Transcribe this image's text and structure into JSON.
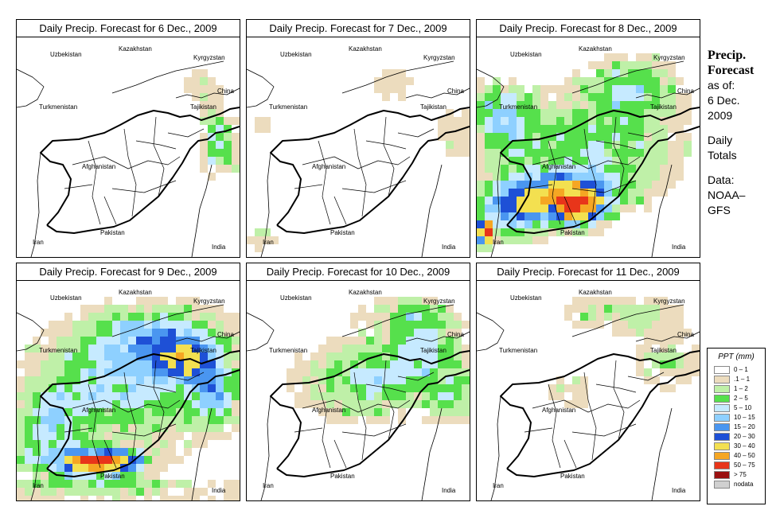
{
  "panels": [
    {
      "title": "Daily Precip. Forecast for  6 Dec., 2009"
    },
    {
      "title": "Daily Precip. Forecast for  7 Dec., 2009"
    },
    {
      "title": "Daily Precip. Forecast for  8 Dec., 2009"
    },
    {
      "title": "Daily Precip. Forecast for  9 Dec., 2009"
    },
    {
      "title": "Daily Precip. Forecast for  10 Dec., 2009"
    },
    {
      "title": "Daily Precip. Forecast for  11 Dec., 2009"
    }
  ],
  "countries": {
    "uzbekistan": "Uzbekistan",
    "kazakhstan": "Kazakhstan",
    "kyrgyzstan": "Kyrgyzstan",
    "china": "China",
    "turkmenistan": "Turkmenistan",
    "tajikistan": "Tajikistan",
    "afghanistan": "Afghanistan",
    "pakistan": "Pakistan",
    "iran": "Iran",
    "india": "India"
  },
  "sidebar": {
    "title1": "Precip.",
    "title2": "Forecast",
    "asof": "as of:",
    "date1": "6 Dec.",
    "date2": "2009",
    "daily1": "Daily",
    "daily2": "Totals",
    "data1": "Data:",
    "data2": "NOAA–",
    "data3": "GFS"
  },
  "legend": {
    "title": "PPT (mm)",
    "items": [
      {
        "label": "0 – 1",
        "color": "#ffffff"
      },
      {
        "label": ".1 – 1",
        "color": "#ecdcbe"
      },
      {
        "label": "1 – 2",
        "color": "#bff0a8"
      },
      {
        "label": "2 – 5",
        "color": "#56e04c"
      },
      {
        "label": "5 – 10",
        "color": "#c6eaff"
      },
      {
        "label": "10 – 15",
        "color": "#8ed0ff"
      },
      {
        "label": "15 – 20",
        "color": "#4a96f0"
      },
      {
        "label": "20 – 30",
        "color": "#1e50d6"
      },
      {
        "label": "30 – 40",
        "color": "#f3e050"
      },
      {
        "label": "40 – 50",
        "color": "#f5a623"
      },
      {
        "label": "50 – 75",
        "color": "#e8351a"
      },
      {
        "label": "> 75",
        "color": "#9b1111"
      },
      {
        "label": "nodata",
        "color": "#d0d0d0"
      }
    ]
  }
}
